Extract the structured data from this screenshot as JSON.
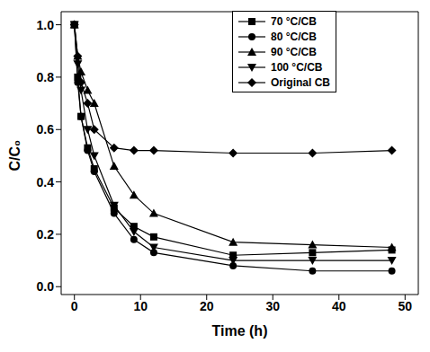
{
  "chart_data": {
    "type": "line",
    "x_label": "Time (h)",
    "y_label": "C/C₀",
    "x": [
      0,
      0.5,
      1,
      2,
      3,
      6,
      9,
      12,
      24,
      36,
      48
    ],
    "series": [
      {
        "name": "70 °C/CB",
        "color": "#000000",
        "marker": "square",
        "values": [
          1.0,
          0.8,
          0.65,
          0.53,
          0.45,
          0.3,
          0.23,
          0.19,
          0.12,
          0.13,
          0.14
        ]
      },
      {
        "name": "80 °C/CB",
        "color": "#000000",
        "marker": "circle",
        "values": [
          1.0,
          0.78,
          0.65,
          0.52,
          0.44,
          0.28,
          0.18,
          0.13,
          0.08,
          0.06,
          0.06
        ]
      },
      {
        "name": "90 °C/CB",
        "color": "#000000",
        "marker": "triangle-up",
        "values": [
          1.0,
          0.88,
          0.82,
          0.75,
          0.7,
          0.46,
          0.35,
          0.28,
          0.17,
          0.16,
          0.15
        ]
      },
      {
        "name": "100 °C/CB",
        "color": "#000000",
        "marker": "triangle-down",
        "values": [
          1.0,
          0.85,
          0.75,
          0.6,
          0.5,
          0.31,
          0.21,
          0.15,
          0.1,
          0.1,
          0.1
        ]
      },
      {
        "name": "Original CB",
        "color": "#000000",
        "marker": "diamond",
        "values": [
          1.0,
          0.88,
          0.78,
          0.7,
          0.6,
          0.53,
          0.52,
          0.52,
          0.51,
          0.51,
          0.52
        ]
      }
    ],
    "xlim": [
      -2,
      52
    ],
    "xticks": [
      0,
      10,
      20,
      30,
      40,
      50
    ],
    "ylim": [
      -0.03,
      1.05
    ],
    "yticks": [
      {
        "value": 0,
        "label": "0.0"
      },
      {
        "value": 0.2,
        "label": "0.2"
      },
      {
        "value": 0.4,
        "label": "0.4"
      },
      {
        "value": 0.6,
        "label": "0.6"
      },
      {
        "value": 0.8,
        "label": "0.8"
      },
      {
        "value": 1.0,
        "label": "1.0"
      }
    ],
    "legend": "top-right",
    "line_style": "solid"
  }
}
